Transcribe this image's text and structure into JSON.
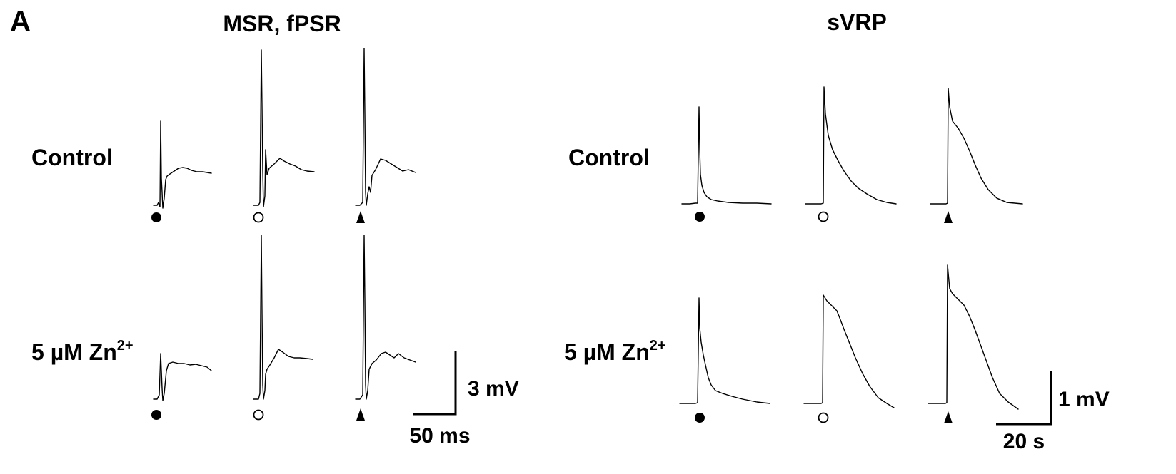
{
  "figure": {
    "panel_letter": "A",
    "left_title": "MSR, fPSR",
    "right_title": "sVRP",
    "rows": [
      {
        "label_text": "Control",
        "label_sup": ""
      },
      {
        "label_text": "5 µM Zn",
        "label_sup": "2+"
      }
    ],
    "markers": [
      "filled-circle",
      "open-circle",
      "filled-triangle"
    ],
    "left_scale": {
      "vertical": "3 mV",
      "horizontal": "50 ms"
    },
    "right_scale": {
      "vertical": "1 mV",
      "horizontal": "20 s"
    }
  }
}
